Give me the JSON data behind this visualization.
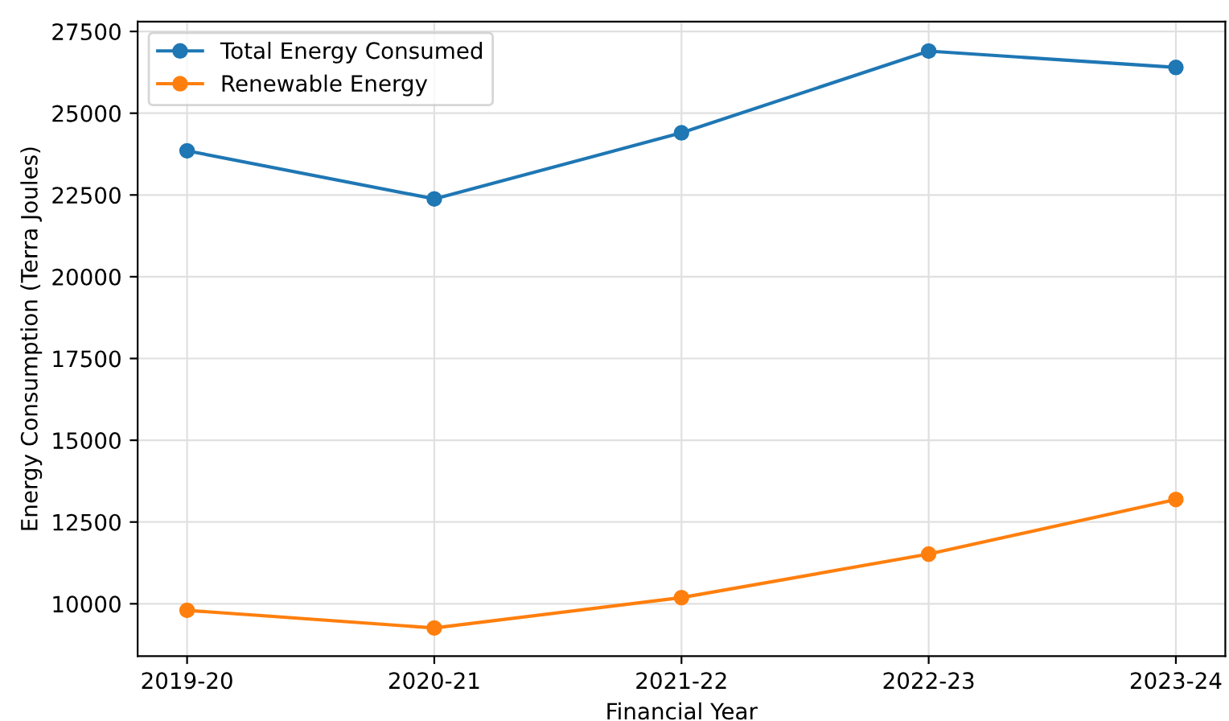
{
  "chart_data": {
    "type": "line",
    "xlabel": "Financial Year",
    "ylabel": "Energy Consumption (Terra Joules)",
    "categories": [
      "2019-20",
      "2020-21",
      "2021-22",
      "2022-23",
      "2023-24"
    ],
    "series": [
      {
        "name": "Total Energy Consumed",
        "color": "#1f77b4",
        "values": [
          23850,
          22380,
          24400,
          26900,
          26400
        ]
      },
      {
        "name": "Renewable Energy",
        "color": "#ff7f0e",
        "values": [
          9800,
          9260,
          10190,
          11520,
          13190
        ]
      }
    ],
    "ylim": [
      8400,
      27800
    ],
    "yticks": [
      10000,
      12500,
      15000,
      17500,
      20000,
      22500,
      25000,
      27500
    ],
    "grid": true,
    "legend": "top left",
    "marker": "circle",
    "line_style": "solid"
  }
}
